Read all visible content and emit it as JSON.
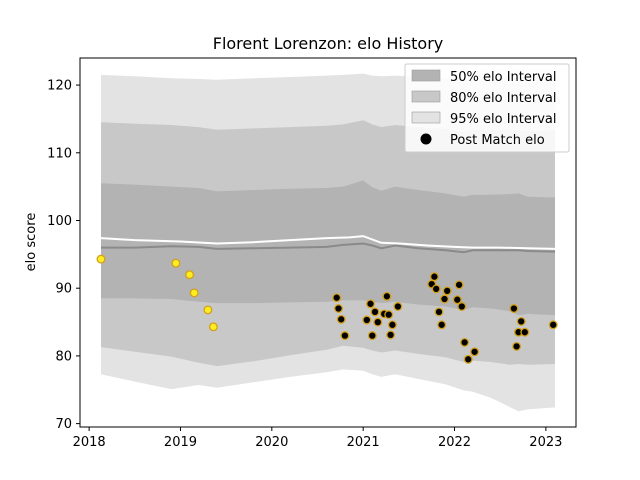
{
  "chart_data": {
    "type": "area",
    "title": "Florent Lorenzon: elo History",
    "xlabel": "",
    "ylabel": "elo score",
    "xlim": [
      2017.9,
      2023.33
    ],
    "ylim": [
      69.5,
      124
    ],
    "xticks": [
      2018,
      2019,
      2020,
      2021,
      2022,
      2023
    ],
    "yticks": [
      70,
      80,
      90,
      100,
      110,
      120
    ],
    "grid": false,
    "legend_position": "top-right",
    "legend": [
      {
        "label": "50% elo Interval",
        "kind": "band",
        "color": "#b3b3b3"
      },
      {
        "label": "80% elo Interval",
        "kind": "band",
        "color": "#c8c8c8"
      },
      {
        "label": "95% elo Interval",
        "kind": "band",
        "color": "#e3e3e3"
      },
      {
        "label": "Post Match elo",
        "kind": "marker",
        "color": "#000000"
      }
    ],
    "bands": {
      "x": [
        2018.13,
        2018.5,
        2018.9,
        2019.2,
        2019.4,
        2019.8,
        2020.2,
        2020.6,
        2020.78,
        2021.0,
        2021.1,
        2021.2,
        2021.35,
        2021.6,
        2021.9,
        2022.1,
        2022.2,
        2022.4,
        2022.6,
        2022.7,
        2022.8,
        2023.1
      ],
      "median": [
        96.0,
        96.0,
        96.2,
        96.1,
        95.8,
        95.9,
        96.0,
        96.1,
        96.4,
        96.6,
        96.3,
        95.9,
        96.3,
        95.9,
        95.6,
        95.3,
        95.6,
        95.6,
        95.6,
        95.6,
        95.5,
        95.4
      ],
      "p50": [
        [
          88.5,
          105.5
        ],
        [
          88.5,
          105.3
        ],
        [
          88.4,
          105.0
        ],
        [
          88.0,
          104.8
        ],
        [
          87.8,
          104.3
        ],
        [
          87.8,
          104.5
        ],
        [
          87.9,
          104.7
        ],
        [
          88.0,
          104.8
        ],
        [
          88.2,
          105.0
        ],
        [
          88.2,
          105.9
        ],
        [
          88.0,
          104.9
        ],
        [
          87.8,
          104.4
        ],
        [
          88.0,
          105.0
        ],
        [
          87.6,
          104.5
        ],
        [
          87.3,
          104.0
        ],
        [
          86.8,
          103.5
        ],
        [
          87.2,
          103.8
        ],
        [
          87.0,
          103.8
        ],
        [
          86.6,
          103.9
        ],
        [
          86.0,
          104.0
        ],
        [
          86.2,
          103.5
        ],
        [
          86.0,
          103.4
        ]
      ],
      "p80": [
        [
          81.3,
          114.5
        ],
        [
          80.6,
          114.3
        ],
        [
          79.9,
          114.1
        ],
        [
          79.0,
          113.8
        ],
        [
          78.5,
          113.4
        ],
        [
          79.2,
          113.6
        ],
        [
          80.1,
          113.8
        ],
        [
          80.9,
          114.0
        ],
        [
          81.5,
          114.2
        ],
        [
          81.2,
          114.8
        ],
        [
          80.8,
          114.2
        ],
        [
          80.5,
          113.8
        ],
        [
          80.8,
          114.1
        ],
        [
          80.3,
          113.8
        ],
        [
          79.8,
          113.5
        ],
        [
          79.1,
          113.1
        ],
        [
          79.3,
          113.4
        ],
        [
          79.1,
          113.4
        ],
        [
          78.7,
          113.4
        ],
        [
          78.8,
          113.3
        ],
        [
          78.7,
          113.2
        ],
        [
          78.8,
          113.3
        ]
      ],
      "p95": [
        [
          77.3,
          121.5
        ],
        [
          76.2,
          121.3
        ],
        [
          75.1,
          121.0
        ],
        [
          75.7,
          120.9
        ],
        [
          75.3,
          120.8
        ],
        [
          76.1,
          121.0
        ],
        [
          76.9,
          121.2
        ],
        [
          77.6,
          121.4
        ],
        [
          78.0,
          121.5
        ],
        [
          77.8,
          121.7
        ],
        [
          77.3,
          121.4
        ],
        [
          76.9,
          121.3
        ],
        [
          77.3,
          121.4
        ],
        [
          76.6,
          121.2
        ],
        [
          75.8,
          121.0
        ],
        [
          74.9,
          120.9
        ],
        [
          74.7,
          121.0
        ],
        [
          73.8,
          121.0
        ],
        [
          72.5,
          121.1
        ],
        [
          71.8,
          121.2
        ],
        [
          72.1,
          121.1
        ],
        [
          72.4,
          121.2
        ]
      ]
    },
    "mean_line": {
      "x": [
        2018.13,
        2018.5,
        2019.0,
        2019.4,
        2019.8,
        2020.2,
        2020.6,
        2020.85,
        2021.0,
        2021.1,
        2021.2,
        2021.4,
        2021.7,
        2022.0,
        2022.2,
        2022.5,
        2022.8,
        2023.1
      ],
      "y": [
        97.4,
        97.1,
        96.9,
        96.6,
        96.8,
        97.1,
        97.4,
        97.5,
        97.7,
        97.2,
        96.7,
        96.6,
        96.3,
        96.1,
        96.0,
        96.0,
        95.9,
        95.8
      ]
    },
    "series": [
      {
        "marker_color": "#ffee22",
        "x": [
          2018.13,
          2018.95,
          2019.1,
          2019.15,
          2019.3,
          2019.36
        ],
        "y": [
          94.3,
          93.7,
          92.0,
          89.3,
          86.8,
          84.3
        ]
      },
      {
        "marker_color": "#000000",
        "x": [
          2020.71,
          2020.73,
          2020.76,
          2020.8,
          2021.04,
          2021.08,
          2021.1,
          2021.13,
          2021.16,
          2021.23,
          2021.26,
          2021.28,
          2021.3,
          2021.32,
          2021.38,
          2021.75,
          2021.78,
          2021.8,
          2021.83,
          2021.86,
          2021.89,
          2021.92,
          2022.03,
          2022.05,
          2022.08,
          2022.11,
          2022.15,
          2022.22,
          2022.65,
          2022.68,
          2022.7,
          2022.73,
          2022.77,
          2023.08
        ],
        "y": [
          88.6,
          87.0,
          85.4,
          83.0,
          85.3,
          87.7,
          83.0,
          86.5,
          85.0,
          86.2,
          88.8,
          86.1,
          83.1,
          84.6,
          87.3,
          90.6,
          91.7,
          89.9,
          86.5,
          84.6,
          88.4,
          89.6,
          88.3,
          90.5,
          87.3,
          82.0,
          79.5,
          80.6,
          87.0,
          81.4,
          83.5,
          85.1,
          83.5,
          84.6
        ]
      }
    ]
  }
}
